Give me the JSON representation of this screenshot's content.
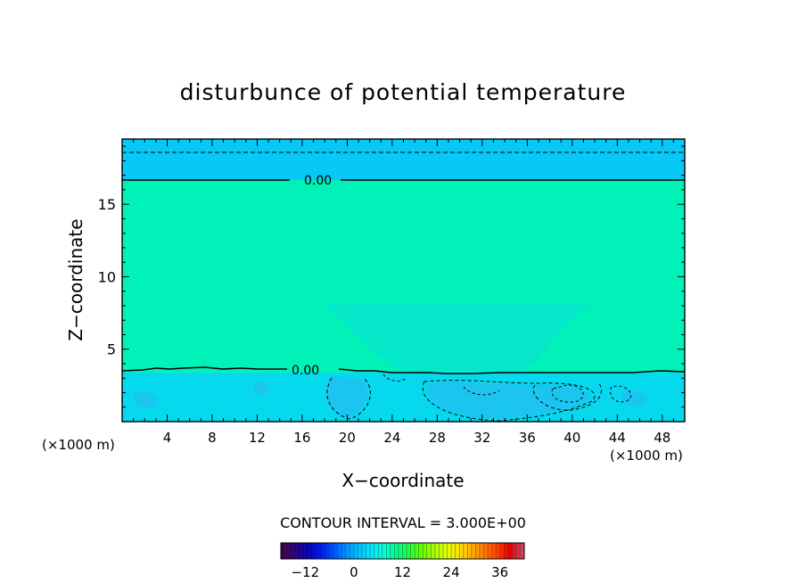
{
  "chart_data": {
    "type": "contour",
    "title": "disturbunce of potential temperature",
    "xlabel": "X−coordinate",
    "ylabel": "Z−coordinate",
    "x_unit_left": "(×1000 m)",
    "x_unit_right": "(×1000 m)",
    "xlim": [
      0,
      50
    ],
    "ylim": [
      0,
      19.5
    ],
    "x_ticks": [
      4,
      8,
      12,
      16,
      20,
      24,
      28,
      32,
      36,
      40,
      44,
      48
    ],
    "y_ticks": [
      5,
      10,
      15
    ],
    "contour_interval_text": "CONTOUR INTERVAL = 3.000E+00",
    "contour_interval": 3.0,
    "contour_labels": [
      {
        "text": "0.00",
        "x": 17.5,
        "z": 17.1
      },
      {
        "text": "0.00",
        "x": 17.0,
        "z": 3.7
      }
    ],
    "zero_contour_upper_z": 17.1,
    "zero_contour_lower_z": 3.6,
    "negative_contour_top_z": 18.9,
    "region_colors": {
      "top_band": "#08c8f8",
      "middle_band": "#00f2b8",
      "trough": "#04e7c9",
      "lower_band": "#06d8ee",
      "lower_patch": "#2fb6f2"
    },
    "colorbar": {
      "min": -18,
      "max": 42,
      "tick_labels": [
        "−12",
        "0",
        "12",
        "24",
        "36"
      ],
      "tick_values": [
        -12,
        0,
        12,
        24,
        36
      ],
      "colors": [
        "#3c004a",
        "#2a0080",
        "#0000b4",
        "#0018e6",
        "#0050ff",
        "#0090ff",
        "#00c0ff",
        "#00e8ff",
        "#00ffd8",
        "#00ff90",
        "#20ff40",
        "#60ff00",
        "#a8ff00",
        "#e0ff00",
        "#ffe000",
        "#ffb000",
        "#ff7800",
        "#ff4000",
        "#e80000",
        "#d04060"
      ]
    }
  }
}
